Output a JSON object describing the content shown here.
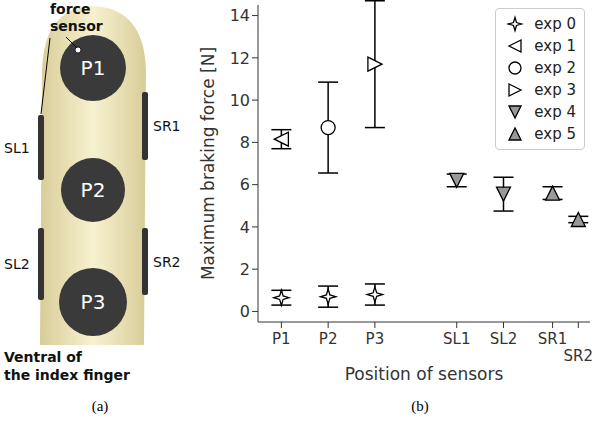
{
  "diagram": {
    "label": "(a)",
    "annotation": [
      "force",
      "sensor"
    ],
    "pads": [
      "P1",
      "P2",
      "P3"
    ],
    "left_sensors": [
      "SL1",
      "SL2"
    ],
    "right_sensors": [
      "SR1",
      "SR2"
    ],
    "caption": [
      "Ventral of",
      "the index finger"
    ]
  },
  "chart_data": {
    "type": "scatter",
    "label": "(b)",
    "x_label": "Position of sensors",
    "y_label": "Maximum braking force [N]",
    "xlim": [
      0.5,
      7.6
    ],
    "xticks": [
      {
        "value": 1,
        "label": "P1"
      },
      {
        "value": 2,
        "label": "P2"
      },
      {
        "value": 3,
        "label": "P3"
      },
      {
        "value": 4.75,
        "label": "SL1"
      },
      {
        "value": 5.75,
        "label": "SL2"
      },
      {
        "value": 6.8,
        "label": "SR1"
      },
      {
        "value": 7.35,
        "label": "SR2"
      }
    ],
    "ylim": [
      -0.5,
      14.5
    ],
    "yticks": [
      0,
      2,
      4,
      6,
      8,
      10,
      12,
      14
    ],
    "grid": false,
    "legend": "upper right",
    "series": [
      {
        "name": "exp 0",
        "marker": "star",
        "color": "#ffffff",
        "x": [
          1,
          2,
          3
        ],
        "values": [
          0.65,
          0.7,
          0.8
        ],
        "errors": [
          0.35,
          0.5,
          0.5
        ]
      },
      {
        "name": "exp 1",
        "marker": "triangle-left",
        "color": "#ffffff",
        "x": [
          1
        ],
        "values": [
          8.15
        ],
        "errors": [
          0.45
        ]
      },
      {
        "name": "exp 2",
        "marker": "circle",
        "color": "#ffffff",
        "x": [
          2
        ],
        "values": [
          8.7
        ],
        "errors": [
          2.15
        ]
      },
      {
        "name": "exp 3",
        "marker": "triangle-right",
        "color": "#ffffff",
        "x": [
          3
        ],
        "values": [
          11.7
        ],
        "errors": [
          3.0
        ]
      },
      {
        "name": "exp 4",
        "marker": "triangle-down",
        "color": "#999999",
        "x": [
          4.75,
          5.75
        ],
        "values": [
          6.2,
          5.55
        ],
        "errors": [
          0.3,
          0.8
        ]
      },
      {
        "name": "exp 5",
        "marker": "triangle-up",
        "color": "#999999",
        "x": [
          6.8,
          7.35
        ],
        "values": [
          5.6,
          4.35
        ],
        "errors": [
          0.3,
          0.15
        ]
      }
    ]
  }
}
